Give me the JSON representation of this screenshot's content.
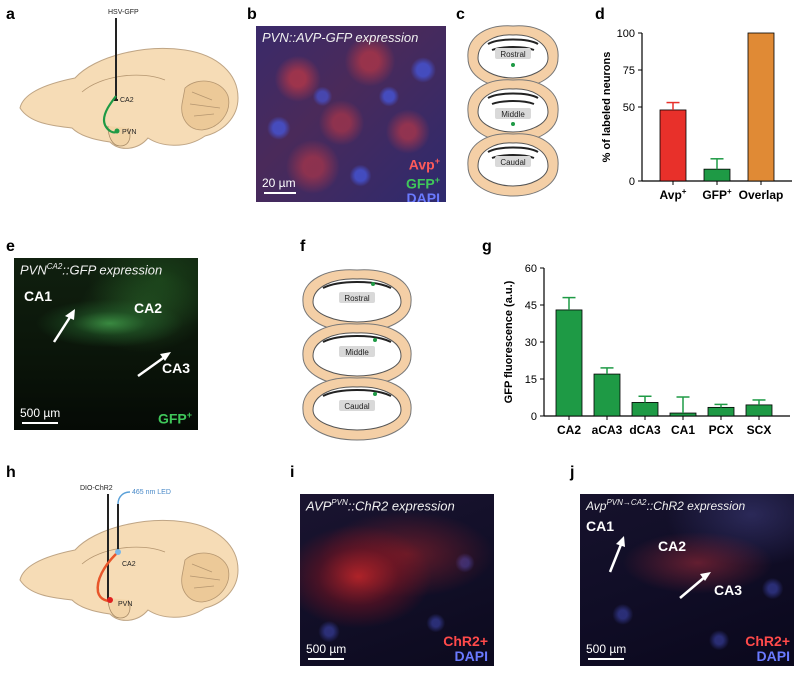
{
  "panels": {
    "a": {
      "label": "a",
      "injection": "HSV-GFP",
      "region1": "CA2",
      "region2": "PVN"
    },
    "b": {
      "label": "b",
      "title_main": "PVN::AVP-GFP expression",
      "scale": "20 µm",
      "legend": [
        "Avp",
        "GFP",
        "DAPI"
      ],
      "legend_sup": "+"
    },
    "c": {
      "label": "c",
      "sections": [
        "Rostral",
        "Middle",
        "Caudal"
      ]
    },
    "d": {
      "label": "d"
    },
    "e": {
      "label": "e",
      "title_prefix": "PVN",
      "title_sup": "CA2",
      "title_suffix": "::GFP expression",
      "regions": [
        "CA1",
        "CA2",
        "CA3"
      ],
      "scale": "500 µm",
      "legend": "GFP",
      "legend_sup": "+"
    },
    "f": {
      "label": "f",
      "sections": [
        "Rostral",
        "Middle",
        "Caudal"
      ]
    },
    "g": {
      "label": "g"
    },
    "h": {
      "label": "h",
      "injection": "DIO-ChR2",
      "led": "465 nm LED",
      "region1": "CA2",
      "region2": "PVN"
    },
    "i": {
      "label": "i",
      "title_prefix": "AVP",
      "title_sup": "PVN",
      "title_suffix": "::ChR2 expression",
      "scale": "500 µm",
      "legend": [
        "ChR2+",
        "DAPI"
      ]
    },
    "j": {
      "label": "j",
      "title_prefix": "Avp",
      "title_sup": "PVN→CA2",
      "title_suffix": "::ChR2 expression",
      "regions": [
        "CA1",
        "CA2",
        "CA3"
      ],
      "scale": "500 µm",
      "legend": [
        "ChR2+",
        "DAPI"
      ]
    }
  },
  "chart_data": [
    {
      "panel": "d",
      "type": "bar",
      "categories": [
        "Avp+",
        "GFP+",
        "Overlap"
      ],
      "tick_labels": [
        "Avp",
        "GFP",
        "Overlap"
      ],
      "tick_sup": [
        "+",
        "+",
        ""
      ],
      "values": [
        48,
        8,
        100
      ],
      "errors": [
        5,
        7,
        0
      ],
      "colors": [
        "#e8302a",
        "#1e9a45",
        "#e08a35"
      ],
      "ylabel": "% of labeled neurons",
      "ylim": [
        0,
        100
      ],
      "yticks": [
        "0",
        "50",
        "75",
        "100"
      ],
      "ytick_values": [
        0,
        50,
        75,
        100
      ]
    },
    {
      "panel": "g",
      "type": "bar",
      "categories": [
        "CA2",
        "aCA3",
        "dCA3",
        "CA1",
        "PCX",
        "SCX"
      ],
      "values": [
        43,
        17,
        5.5,
        1.2,
        3.5,
        4.5
      ],
      "errors": [
        5,
        2.5,
        2.5,
        6.5,
        1.2,
        2
      ],
      "colors": [
        "#1e9a45"
      ],
      "ylabel": "GFP fluorescence (a.u.)",
      "ylim": [
        0,
        60
      ],
      "yticks": [
        "0",
        "15",
        "30",
        "45",
        "60"
      ],
      "ytick_values": [
        0,
        15,
        30,
        45,
        60
      ]
    }
  ]
}
